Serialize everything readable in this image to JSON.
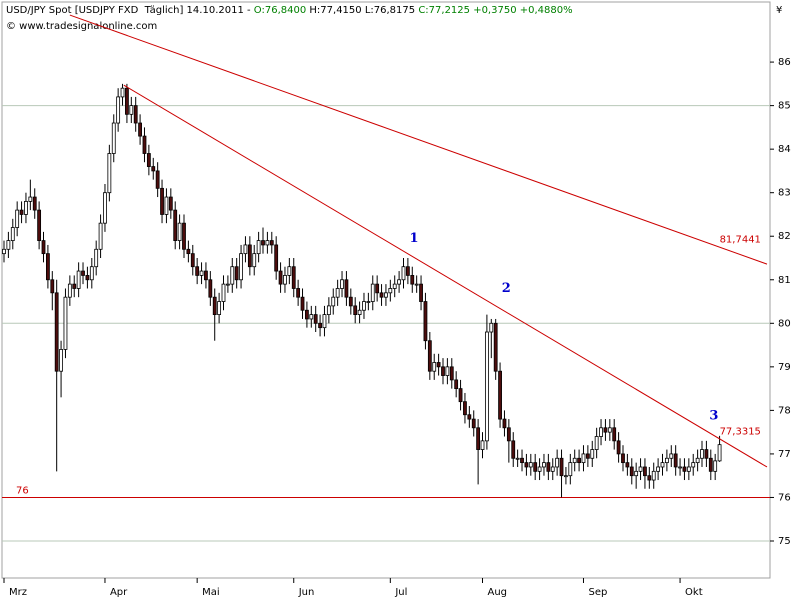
{
  "chart_data": {
    "type": "candlestick",
    "header": [
      {
        "text": "USD/JPY Spot [USDJPY FXD  Täglich] 14.10.2011 - ",
        "color": "#000000"
      },
      {
        "text": "O:76,8400 ",
        "color": "#008000"
      },
      {
        "text": "H:77,4150 L:76,8175 ",
        "color": "#000000"
      },
      {
        "text": "C:77,2125 +0,3750 +0,4880%",
        "color": "#008000"
      }
    ],
    "copyright": "© www.tradesignalonline.com",
    "currency": "¥",
    "categories": [
      "Mrz",
      null,
      null,
      null,
      null,
      null,
      null,
      null,
      null,
      null,
      null,
      null,
      null,
      null,
      null,
      null,
      null,
      null,
      null,
      null,
      null,
      null,
      null,
      "Apr",
      null,
      null,
      null,
      null,
      null,
      null,
      null,
      null,
      null,
      null,
      null,
      null,
      null,
      null,
      null,
      null,
      null,
      null,
      null,
      null,
      "Mai",
      null,
      null,
      null,
      null,
      null,
      null,
      null,
      null,
      null,
      null,
      null,
      null,
      null,
      null,
      null,
      null,
      null,
      null,
      null,
      null,
      null,
      "Jun",
      null,
      null,
      null,
      null,
      null,
      null,
      null,
      null,
      null,
      null,
      null,
      null,
      null,
      null,
      null,
      null,
      null,
      null,
      null,
      null,
      null,
      "Jul",
      null,
      null,
      null,
      null,
      null,
      null,
      null,
      null,
      null,
      null,
      null,
      null,
      null,
      null,
      null,
      null,
      null,
      null,
      null,
      null,
      "Aug",
      null,
      null,
      null,
      null,
      null,
      null,
      null,
      null,
      null,
      null,
      null,
      null,
      null,
      null,
      null,
      null,
      null,
      null,
      null,
      null,
      null,
      null,
      "Sep",
      null,
      null,
      null,
      null,
      null,
      null,
      null,
      null,
      null,
      null,
      null,
      null,
      null,
      null,
      null,
      null,
      null,
      null,
      null,
      null,
      null,
      "Okt",
      null,
      null,
      null,
      null,
      null,
      null,
      null,
      null,
      null
    ],
    "open": [
      81.6,
      81.7,
      81.9,
      82.2,
      82.6,
      82.5,
      82.8,
      82.9,
      82.6,
      81.9,
      81.6,
      81.0,
      80.7,
      78.9,
      79.4,
      80.6,
      80.9,
      80.8,
      81.2,
      81.1,
      81.0,
      81.3,
      81.7,
      82.3,
      83.0,
      83.9,
      84.6,
      85.2,
      85.4,
      84.8,
      85.0,
      84.6,
      84.3,
      83.9,
      83.6,
      83.5,
      83.1,
      82.5,
      82.9,
      82.6,
      81.9,
      82.3,
      81.7,
      81.6,
      81.3,
      81.1,
      81.2,
      81.0,
      80.6,
      80.2,
      80.5,
      80.9,
      80.9,
      81.3,
      81.0,
      81.6,
      81.8,
      81.3,
      81.6,
      81.9,
      81.8,
      81.9,
      81.8,
      81.2,
      80.9,
      81.1,
      81.3,
      80.8,
      80.6,
      80.3,
      80.1,
      80.2,
      80.0,
      79.9,
      80.2,
      80.4,
      80.6,
      80.8,
      81.0,
      80.6,
      80.4,
      80.2,
      80.3,
      80.5,
      80.5,
      80.9,
      80.7,
      80.6,
      80.7,
      80.8,
      80.9,
      81.0,
      81.3,
      81.1,
      80.9,
      80.9,
      80.5,
      79.6,
      78.9,
      79.1,
      79.0,
      78.8,
      79.0,
      78.7,
      78.5,
      78.2,
      77.9,
      77.8,
      77.6,
      77.1,
      77.3,
      79.8,
      80.0,
      78.9,
      77.8,
      77.6,
      77.3,
      76.9,
      76.9,
      76.8,
      76.7,
      76.8,
      76.6,
      76.7,
      76.8,
      76.6,
      76.7,
      76.9,
      76.5,
      76.5,
      76.8,
      76.9,
      76.8,
      77.0,
      76.9,
      77.1,
      77.4,
      77.6,
      77.5,
      77.6,
      77.3,
      77.0,
      76.8,
      76.7,
      76.5,
      76.6,
      76.7,
      76.5,
      76.4,
      76.6,
      76.7,
      76.8,
      76.9,
      77.0,
      76.7,
      76.7,
      76.6,
      76.7,
      76.8,
      76.9,
      77.1,
      76.9,
      76.6,
      76.84
    ],
    "high": [
      81.9,
      82.1,
      82.4,
      82.8,
      82.8,
      83.0,
      83.3,
      83.1,
      82.8,
      82.1,
      81.8,
      81.2,
      81.0,
      79.6,
      80.8,
      81.1,
      81.1,
      81.4,
      81.4,
      81.3,
      81.5,
      81.9,
      82.5,
      83.2,
      84.1,
      84.8,
      85.4,
      85.5,
      85.5,
      85.2,
      85.2,
      84.8,
      84.5,
      84.1,
      83.8,
      83.7,
      83.3,
      83.1,
      83.1,
      82.8,
      82.5,
      82.5,
      81.9,
      81.8,
      81.5,
      81.4,
      81.4,
      81.2,
      80.8,
      80.7,
      81.1,
      81.1,
      81.5,
      81.5,
      81.8,
      82.0,
      82.0,
      81.8,
      82.1,
      82.2,
      82.1,
      82.1,
      82.0,
      81.4,
      81.3,
      81.5,
      81.5,
      81.0,
      80.8,
      80.5,
      80.4,
      80.4,
      80.2,
      80.4,
      80.6,
      80.8,
      81.0,
      81.2,
      81.2,
      80.8,
      80.6,
      80.5,
      80.7,
      80.7,
      81.1,
      81.1,
      80.9,
      80.9,
      81.0,
      81.1,
      81.2,
      81.5,
      81.5,
      81.3,
      81.1,
      81.1,
      80.7,
      79.8,
      79.3,
      79.3,
      79.2,
      79.2,
      79.2,
      78.9,
      78.7,
      78.4,
      78.1,
      78.0,
      77.8,
      77.5,
      80.2,
      80.1,
      80.1,
      79.1,
      78.0,
      77.8,
      77.5,
      77.1,
      77.1,
      77.0,
      77.0,
      77.0,
      76.9,
      77.0,
      77.0,
      76.9,
      77.1,
      77.1,
      76.7,
      77.0,
      77.1,
      77.1,
      77.2,
      77.2,
      77.3,
      77.6,
      77.8,
      77.8,
      77.8,
      77.8,
      77.5,
      77.2,
      77.0,
      76.9,
      76.8,
      76.9,
      76.9,
      76.7,
      76.8,
      76.9,
      77.0,
      77.1,
      77.2,
      77.2,
      76.9,
      76.9,
      76.9,
      77.0,
      77.1,
      77.3,
      77.3,
      77.1,
      77.0,
      77.415
    ],
    "low": [
      81.4,
      81.5,
      81.7,
      82.0,
      82.3,
      82.3,
      82.6,
      82.4,
      81.7,
      81.4,
      80.8,
      80.3,
      76.6,
      78.3,
      79.2,
      80.4,
      80.6,
      80.6,
      80.9,
      80.8,
      80.8,
      81.1,
      81.5,
      82.1,
      82.8,
      83.7,
      84.4,
      85.0,
      84.6,
      84.6,
      84.4,
      84.1,
      83.7,
      83.4,
      83.3,
      82.9,
      82.3,
      82.3,
      82.4,
      81.7,
      81.7,
      81.5,
      81.4,
      81.1,
      80.9,
      80.9,
      80.8,
      80.4,
      79.6,
      80.0,
      80.3,
      80.7,
      80.7,
      80.8,
      80.8,
      81.4,
      81.1,
      81.1,
      81.4,
      81.6,
      81.6,
      81.6,
      81.0,
      80.7,
      80.7,
      80.9,
      80.6,
      80.4,
      80.1,
      79.9,
      79.9,
      79.8,
      79.7,
      79.7,
      80.0,
      80.2,
      80.4,
      80.6,
      80.4,
      80.2,
      80.0,
      80.0,
      80.1,
      80.3,
      80.3,
      80.5,
      80.4,
      80.4,
      80.5,
      80.6,
      80.7,
      80.8,
      80.9,
      80.7,
      80.7,
      80.3,
      79.4,
      78.7,
      78.7,
      78.8,
      78.6,
      78.6,
      78.5,
      78.3,
      78.0,
      77.7,
      77.6,
      77.4,
      76.3,
      76.9,
      77.1,
      79.2,
      78.7,
      77.6,
      77.4,
      76.8,
      76.7,
      76.7,
      76.6,
      76.5,
      76.5,
      76.4,
      76.4,
      76.5,
      76.4,
      76.4,
      76.5,
      76.0,
      76.3,
      76.3,
      76.6,
      76.6,
      76.6,
      76.7,
      76.7,
      76.9,
      77.2,
      77.3,
      77.3,
      77.1,
      76.8,
      76.6,
      76.5,
      76.3,
      76.2,
      76.4,
      76.2,
      76.2,
      76.2,
      76.4,
      76.5,
      76.6,
      76.7,
      76.5,
      76.5,
      76.4,
      76.4,
      76.5,
      76.6,
      76.7,
      76.7,
      76.4,
      76.4,
      76.8175
    ],
    "close": [
      81.7,
      81.9,
      82.2,
      82.6,
      82.5,
      82.8,
      82.9,
      82.6,
      81.9,
      81.6,
      81.0,
      80.7,
      78.9,
      79.4,
      80.6,
      80.9,
      80.8,
      81.2,
      81.1,
      81.0,
      81.3,
      81.7,
      82.3,
      83.0,
      83.9,
      84.6,
      85.2,
      85.4,
      84.8,
      85.0,
      84.6,
      84.3,
      83.9,
      83.6,
      83.5,
      83.1,
      82.5,
      82.9,
      82.6,
      81.9,
      82.3,
      81.7,
      81.6,
      81.3,
      81.1,
      81.2,
      81.0,
      80.6,
      80.2,
      80.5,
      80.9,
      80.9,
      81.3,
      81.0,
      81.6,
      81.8,
      81.3,
      81.6,
      81.9,
      81.8,
      81.9,
      81.8,
      81.2,
      80.9,
      81.1,
      81.3,
      80.8,
      80.6,
      80.3,
      80.1,
      80.2,
      80.0,
      79.9,
      80.2,
      80.4,
      80.6,
      80.8,
      81.0,
      80.6,
      80.4,
      80.2,
      80.3,
      80.5,
      80.5,
      80.9,
      80.7,
      80.6,
      80.7,
      80.8,
      80.9,
      81.0,
      81.3,
      81.1,
      80.9,
      80.9,
      80.5,
      79.6,
      78.9,
      79.1,
      79.0,
      78.8,
      79.0,
      78.7,
      78.5,
      78.2,
      77.9,
      77.8,
      77.6,
      77.1,
      77.3,
      79.8,
      80.0,
      78.9,
      77.8,
      77.6,
      77.3,
      76.9,
      76.9,
      76.8,
      76.7,
      76.8,
      76.6,
      76.7,
      76.8,
      76.6,
      76.7,
      76.9,
      76.5,
      76.5,
      76.8,
      76.9,
      76.8,
      77.0,
      76.9,
      77.1,
      77.4,
      77.6,
      77.5,
      77.6,
      77.3,
      77.0,
      76.8,
      76.7,
      76.5,
      76.6,
      76.7,
      76.5,
      76.4,
      76.6,
      76.7,
      76.8,
      76.9,
      77.0,
      76.7,
      76.7,
      76.6,
      76.7,
      76.8,
      76.9,
      77.1,
      76.9,
      76.6,
      76.84,
      77.2125
    ],
    "up_color": "#ffffff",
    "down_color": "#4d0d0d",
    "wick_color": "#000000",
    "ylim": [
      74.15,
      87.38
    ],
    "yticks": [
      75,
      76,
      77,
      78,
      79,
      80,
      81,
      82,
      83,
      84,
      85,
      86
    ],
    "ygrid": [
      75,
      80,
      85
    ],
    "lines": [
      {
        "label": "81,7441",
        "label_value": 81.7441,
        "color": "#cc0000",
        "x": [
          15,
          173.8
        ],
        "y": [
          87.08,
          81.36
        ]
      },
      {
        "label": "77,3315",
        "label_value": 77.3315,
        "color": "#cc0000",
        "x": [
          27.3,
          173.8
        ],
        "y": [
          85.47,
          76.7
        ]
      }
    ],
    "hline": {
      "label": "76",
      "value": 76,
      "color": "#cc0000"
    },
    "annotations": [
      {
        "text": "1",
        "x": 93.4,
        "y": 81.95,
        "color": "#0000cc"
      },
      {
        "text": "2",
        "x": 114.4,
        "y": 80.8,
        "color": "#0000cc"
      },
      {
        "text": "3",
        "x": 161.7,
        "y": 77.87,
        "color": "#0000cc"
      }
    ]
  }
}
